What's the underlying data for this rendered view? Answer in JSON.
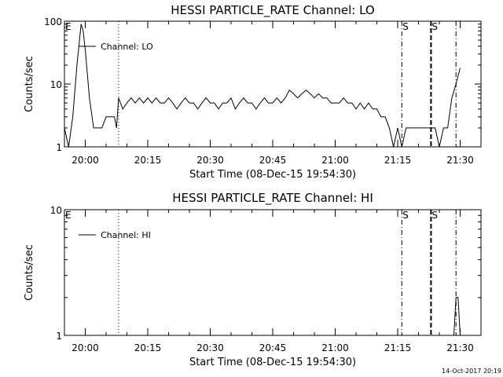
{
  "footer_timestamp": "14-Oct-2017 20:19",
  "chart_data": [
    {
      "type": "line",
      "title": "HESSI PARTICLE_RATE Channel: LO",
      "xlabel": "Start Time (08-Dec-15 19:54:30)",
      "ylabel": "Counts/sec",
      "yscale": "log",
      "ylim": [
        1,
        100
      ],
      "yticks": [
        {
          "value": 1,
          "label": "1"
        },
        {
          "value": 10,
          "label": "10"
        },
        {
          "value": 100,
          "label": "100"
        }
      ],
      "xlim": [
        "19:55",
        "21:35"
      ],
      "xticks": [
        "20:00",
        "20:15",
        "20:30",
        "20:45",
        "21:00",
        "21:15",
        "21:30"
      ],
      "legend": {
        "label": "Channel: LO",
        "position": "top-left"
      },
      "markers": [
        {
          "time": "19:55",
          "label": "E",
          "style": "none"
        },
        {
          "time": "20:08",
          "label": "",
          "style": "dotted"
        },
        {
          "time": "21:16",
          "label": "S",
          "style": "dash-dot"
        },
        {
          "time": "21:23",
          "label": "S",
          "style": "dashed"
        },
        {
          "time": "21:29",
          "label": "",
          "style": "dash-dot"
        }
      ],
      "series": [
        {
          "name": "Channel: LO",
          "x": [
            "19:55",
            "19:56",
            "19:57",
            "19:58",
            "19:59",
            "19:59.5",
            "20:00",
            "20:01",
            "20:02",
            "20:03",
            "20:04",
            "20:05",
            "20:06",
            "20:07",
            "20:07.5",
            "20:08",
            "20:09",
            "20:10",
            "20:11",
            "20:12",
            "20:13",
            "20:14",
            "20:15",
            "20:16",
            "20:17",
            "20:18",
            "20:19",
            "20:20",
            "20:21",
            "20:22",
            "20:23",
            "20:24",
            "20:25",
            "20:26",
            "20:27",
            "20:28",
            "20:29",
            "20:30",
            "20:31",
            "20:32",
            "20:33",
            "20:34",
            "20:35",
            "20:36",
            "20:37",
            "20:38",
            "20:39",
            "20:40",
            "20:41",
            "20:42",
            "20:43",
            "20:44",
            "20:45",
            "20:46",
            "20:47",
            "20:48",
            "20:49",
            "20:50",
            "20:51",
            "20:52",
            "20:53",
            "20:54",
            "20:55",
            "20:56",
            "20:57",
            "20:58",
            "20:59",
            "21:00",
            "21:01",
            "21:02",
            "21:03",
            "21:04",
            "21:05",
            "21:06",
            "21:07",
            "21:08",
            "21:09",
            "21:10",
            "21:11",
            "21:12",
            "21:13",
            "21:14",
            "21:15",
            "21:16",
            "21:17",
            "21:18",
            "21:19",
            "21:20",
            "21:21",
            "21:22",
            "21:23",
            "21:24",
            "21:25",
            "21:26",
            "21:27",
            "21:28",
            "21:29",
            "21:30"
          ],
          "values": [
            2,
            1,
            3,
            20,
            90,
            70,
            35,
            6,
            2,
            2,
            2,
            3,
            3,
            3,
            2,
            6,
            4,
            5,
            6,
            5,
            6,
            5,
            6,
            5,
            6,
            5,
            5,
            6,
            5,
            4,
            5,
            6,
            5,
            5,
            4,
            5,
            6,
            5,
            5,
            4,
            5,
            5,
            6,
            4,
            5,
            6,
            5,
            5,
            4,
            5,
            6,
            5,
            5,
            6,
            5,
            6,
            8,
            7,
            6,
            7,
            8,
            7,
            6,
            7,
            6,
            6,
            5,
            5,
            5,
            6,
            5,
            5,
            4,
            5,
            4,
            5,
            4,
            4,
            3,
            3,
            2,
            1,
            2,
            1,
            2,
            2,
            2,
            2,
            2,
            2,
            2,
            2,
            1,
            2,
            2,
            6,
            10,
            18
          ]
        }
      ]
    },
    {
      "type": "line",
      "title": "HESSI PARTICLE_RATE Channel: HI",
      "xlabel": "Start Time (08-Dec-15 19:54:30)",
      "ylabel": "Counts/sec",
      "yscale": "log",
      "ylim": [
        1,
        10
      ],
      "yticks": [
        {
          "value": 1,
          "label": "1"
        },
        {
          "value": 10,
          "label": "10"
        }
      ],
      "xlim": [
        "19:55",
        "21:35"
      ],
      "xticks": [
        "20:00",
        "20:15",
        "20:30",
        "20:45",
        "21:00",
        "21:15",
        "21:30"
      ],
      "legend": {
        "label": "Channel: HI",
        "position": "top-left"
      },
      "markers": [
        {
          "time": "19:55",
          "label": "E",
          "style": "none"
        },
        {
          "time": "20:08",
          "label": "",
          "style": "dotted"
        },
        {
          "time": "21:16",
          "label": "S",
          "style": "dash-dot"
        },
        {
          "time": "21:23",
          "label": "S",
          "style": "dashed"
        },
        {
          "time": "21:29",
          "label": "",
          "style": "dash-dot"
        }
      ],
      "series": [
        {
          "name": "Channel: HI",
          "x": [
            "21:28.5",
            "21:29",
            "21:29.5",
            "21:30"
          ],
          "values": [
            1,
            2,
            2,
            1
          ]
        }
      ]
    }
  ]
}
